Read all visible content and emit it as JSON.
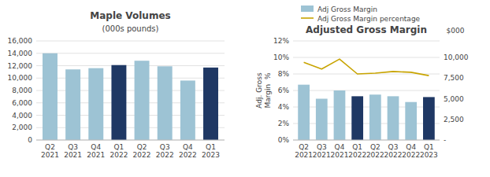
{
  "chart_data": [
    {
      "type": "bar",
      "title": "Maple Volumes",
      "subtitle": "(000s pounds)",
      "categories": [
        "Q2\n2021",
        "Q3\n2021",
        "Q4\n2021",
        "Q1\n2022",
        "Q2\n2022",
        "Q3\n2022",
        "Q4\n2022",
        "Q1\n2023"
      ],
      "values": [
        14000,
        11400,
        11600,
        12100,
        12800,
        11900,
        9600,
        11700
      ],
      "colors": [
        "#9DC3D4",
        "#9DC3D4",
        "#9DC3D4",
        "#1F3864",
        "#9DC3D4",
        "#9DC3D4",
        "#9DC3D4",
        "#1F3864"
      ],
      "ylim": [
        0,
        16000
      ],
      "yticks": [
        0,
        {
          "value": 2000,
          "label": "2,000"
        },
        {
          "value": 4000,
          "label": "4,000"
        },
        {
          "value": 6000,
          "label": "6,000"
        },
        {
          "value": 8000,
          "label": "8,000"
        },
        {
          "value": 10000,
          "label": "10,000"
        },
        {
          "value": 12000,
          "label": "12,000"
        },
        {
          "value": 14000,
          "label": "14,000"
        },
        {
          "value": 16000,
          "label": "16,000"
        }
      ],
      "grid": true
    },
    {
      "type": "bar",
      "title": "Adjusted Gross Margin",
      "y_label": "Adj. Gross\nMargin  %",
      "y2_label": "$000",
      "categories": [
        "Q2\n2021",
        "Q3\n2021",
        "Q4\n2021",
        "Q1\n2022",
        "Q2\n2022",
        "Q3\n2022",
        "Q4\n2022",
        "Q1\n2023"
      ],
      "series": [
        {
          "name": "Adj Gross Margin",
          "type": "bar",
          "color": "#9DC3D4",
          "colors": [
            "#9DC3D4",
            "#9DC3D4",
            "#9DC3D4",
            "#1F3864",
            "#9DC3D4",
            "#9DC3D4",
            "#9DC3D4",
            "#1F3864"
          ],
          "values": [
            6.7,
            5.0,
            6.0,
            5.3,
            5.5,
            5.3,
            4.6,
            5.2
          ]
        },
        {
          "name": "Adj Gross Margin percentage",
          "type": "line",
          "color": "#C8A400",
          "axis": "y2",
          "values": [
            9.4,
            8.6,
            9.8,
            8.0,
            8.1,
            8.3,
            8.2,
            7.8
          ]
        }
      ],
      "ylim": [
        0,
        12
      ],
      "yticks": [
        {
          "value": 0,
          "label": "0%"
        },
        {
          "value": 2,
          "label": "2%"
        },
        {
          "value": 4,
          "label": "4%"
        },
        {
          "value": 6,
          "label": "6%"
        },
        {
          "value": 8,
          "label": "8%"
        },
        {
          "value": 10,
          "label": "10%"
        },
        {
          "value": 12,
          "label": "12%"
        }
      ],
      "y2lim": [
        0,
        12
      ],
      "y2ticks": [
        {
          "value": 0,
          "label": "-"
        },
        {
          "value": 2.5,
          "label": "2,500"
        },
        {
          "value": 5.0,
          "label": "5,000"
        },
        {
          "value": 7.5,
          "label": "7,500"
        },
        {
          "value": 10.0,
          "label": "10,000"
        }
      ],
      "grid": true,
      "legend": "top"
    }
  ]
}
